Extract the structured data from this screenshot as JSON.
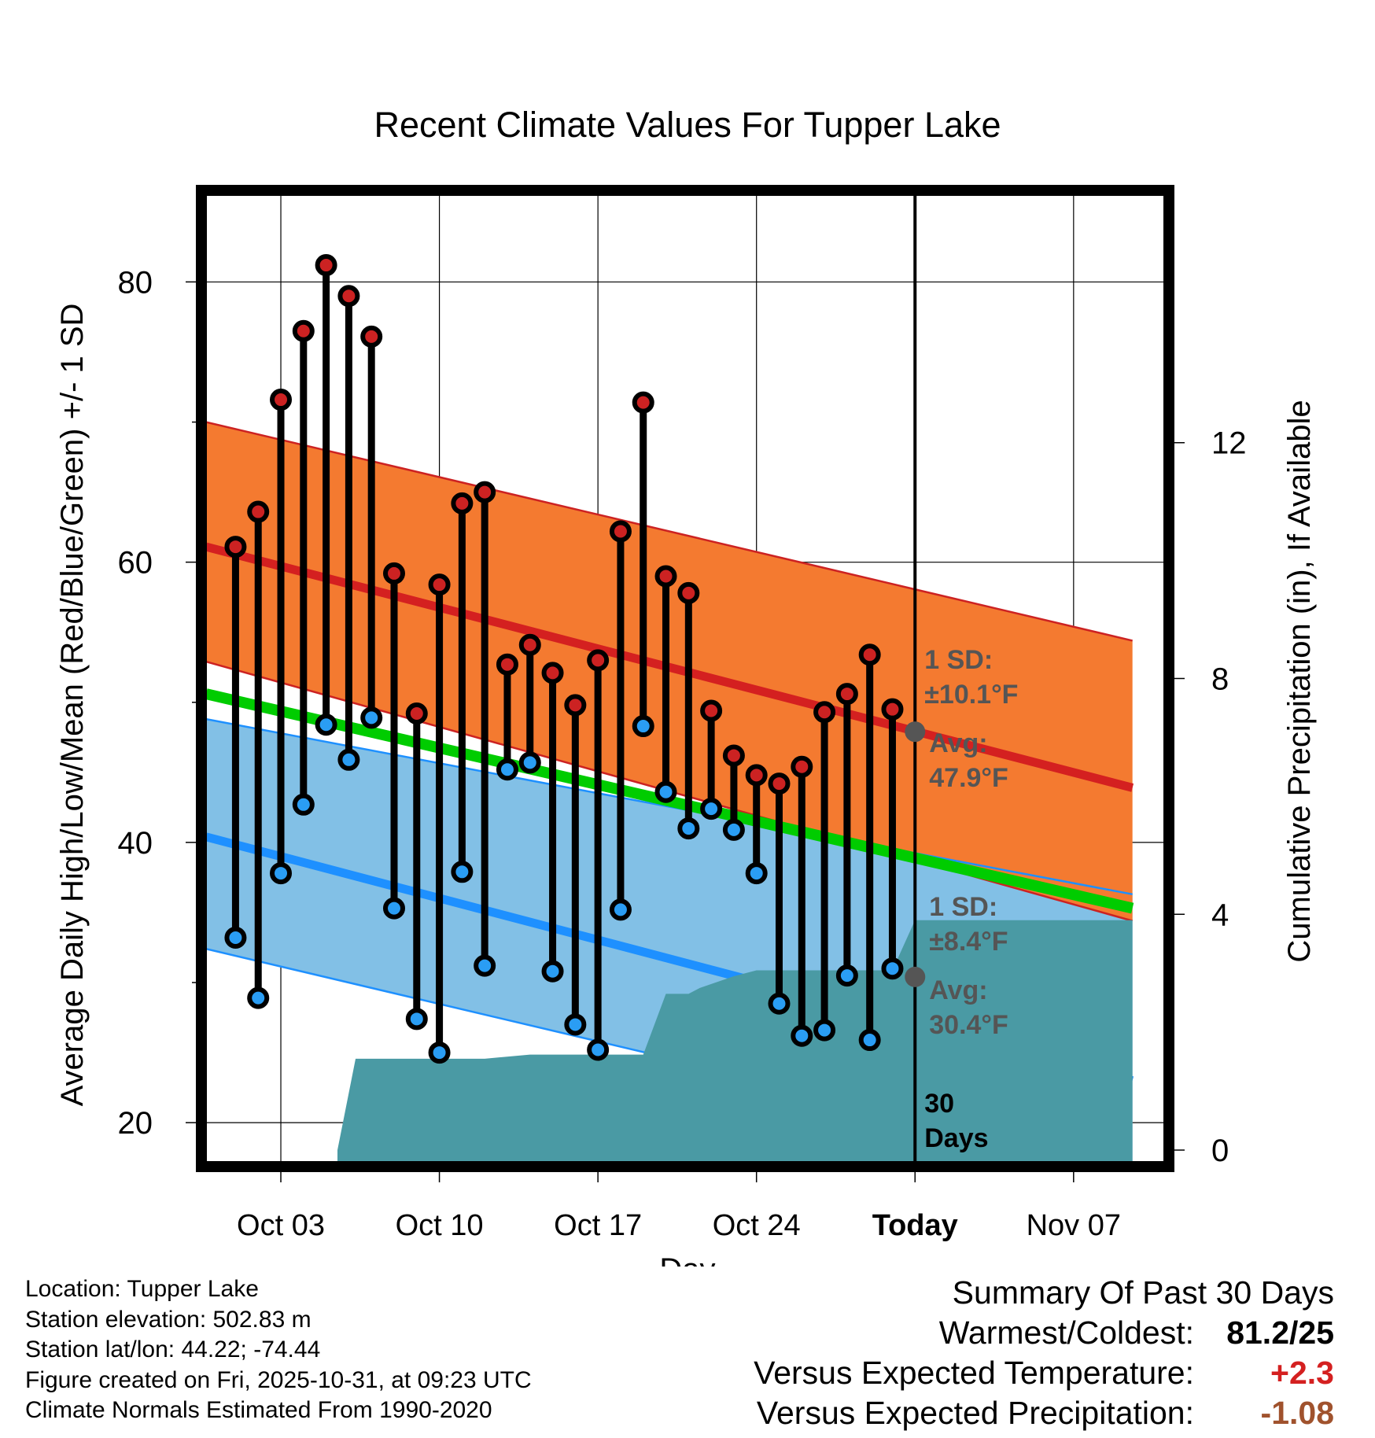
{
  "chart_data": {
    "type": "line",
    "title": "Recent Climate Values For Tupper Lake",
    "xlabel": "Day",
    "ylabel": "Average Daily High/Low/Mean (Red/Blue/Green) +/- 1 SD",
    "y2label": "Cumulative Precipitation (in), If Available",
    "x_range_days": [
      -31.3,
      11
    ],
    "xticks": [
      {
        "day": -28,
        "label": "Oct 03"
      },
      {
        "day": -21,
        "label": "Oct 10"
      },
      {
        "day": -14,
        "label": "Oct 17"
      },
      {
        "day": -7,
        "label": "Oct 24"
      },
      {
        "day": 0,
        "label": "Today"
      },
      {
        "day": 7,
        "label": "Nov 07"
      }
    ],
    "ylim": [
      17.2,
      86.2
    ],
    "yticks": [
      20,
      40,
      60,
      80
    ],
    "y2lim": [
      -0.2,
      16.2
    ],
    "y2ticks": [
      0,
      4,
      8,
      12
    ],
    "normals": {
      "high_mean": {
        "start": 61.1,
        "end": 43.9,
        "color": "#d42020"
      },
      "high_sd_upper": {
        "start": 70.0,
        "end": 54.4
      },
      "high_sd_lower": {
        "start": 52.9,
        "end": 34.4
      },
      "low_mean": {
        "start": 40.4,
        "end": 23.0,
        "color": "#1e90ff"
      },
      "low_sd_upper": {
        "start": 48.8,
        "end": 36.3
      },
      "low_sd_lower": {
        "start": 32.4,
        "end": 16.8
      },
      "mean_line": {
        "start": 50.6,
        "end": 35.3,
        "color": "#00cc00"
      },
      "x_start": -31.3,
      "x_end": 9.6
    },
    "series": [
      {
        "name": "Daily High",
        "color": "#cc2222",
        "days": [
          -30,
          -29,
          -28,
          -27,
          -26,
          -25,
          -24,
          -23,
          -22,
          -21,
          -20,
          -19,
          -18,
          -17,
          -16,
          -15,
          -14,
          -13,
          -12,
          -11,
          -10,
          -9,
          -8,
          -7,
          -6,
          -5,
          -4,
          -3,
          -2,
          -1
        ],
        "values": [
          61.1,
          63.6,
          71.6,
          76.5,
          81.2,
          79.0,
          76.1,
          59.2,
          49.2,
          58.4,
          64.2,
          65.0,
          52.7,
          54.1,
          52.1,
          49.8,
          53.0,
          62.2,
          71.4,
          59.0,
          57.8,
          49.4,
          46.2,
          44.8,
          44.2,
          45.4,
          49.3,
          50.6,
          53.4,
          49.5
        ]
      },
      {
        "name": "Daily Low",
        "color": "#2a9df4",
        "days": [
          -30,
          -29,
          -28,
          -27,
          -26,
          -25,
          -24,
          -23,
          -22,
          -21,
          -20,
          -19,
          -18,
          -17,
          -16,
          -15,
          -14,
          -13,
          -12,
          -11,
          -10,
          -9,
          -8,
          -7,
          -6,
          -5,
          -4,
          -3,
          -2,
          -1
        ],
        "values": [
          33.2,
          28.9,
          37.8,
          42.7,
          48.4,
          45.9,
          48.9,
          35.3,
          27.4,
          25.0,
          37.9,
          31.2,
          45.2,
          45.7,
          30.8,
          27.0,
          25.2,
          35.2,
          48.3,
          43.6,
          41.0,
          42.4,
          40.9,
          37.8,
          28.5,
          26.2,
          26.6,
          30.5,
          25.9,
          31.0
        ]
      }
    ],
    "precipitation": {
      "color": "#4a9aa4",
      "days": [
        -25.5,
        -24.7,
        -20,
        -19,
        -17,
        -12,
        -11,
        -10,
        -9.5,
        -8,
        -7,
        -6,
        -1,
        0,
        5,
        9.6
      ],
      "values": [
        0,
        1.55,
        1.55,
        1.55,
        1.62,
        1.62,
        2.65,
        2.65,
        2.75,
        2.95,
        3.05,
        3.05,
        3.05,
        3.9,
        3.9,
        3.9
      ]
    },
    "annotations": {
      "high_sd": "1 SD:",
      "high_sd_value": "±10.1°F",
      "high_avg": "Avg:",
      "high_avg_value": "47.9°F",
      "low_sd": "1 SD:",
      "low_sd_value": "±8.4°F",
      "low_avg": "Avg:",
      "low_avg_value": "30.4°F",
      "period_number": "30",
      "period_unit": "Days",
      "today_high_avg": 47.9,
      "today_low_avg": 30.4
    }
  },
  "footer": {
    "location": "Location: Tupper Lake",
    "elevation": "Station elevation: 502.83 m",
    "latlon": "Station lat/lon: 44.22; -74.44",
    "created": "Figure created on Fri, 2025-10-31, at 09:23 UTC",
    "normals": "Climate Normals Estimated From 1990-2020"
  },
  "summary": {
    "title": "Summary Of Past 30 Days",
    "warmest_label": "Warmest/Coldest:",
    "warmest_value": "81.2/25",
    "temp_label": "Versus Expected Temperature:",
    "temp_value": "+2.3",
    "temp_color": "#d42020",
    "precip_label": "Versus Expected Precipitation:",
    "precip_value": "-1.08",
    "precip_color": "#a0522d"
  }
}
